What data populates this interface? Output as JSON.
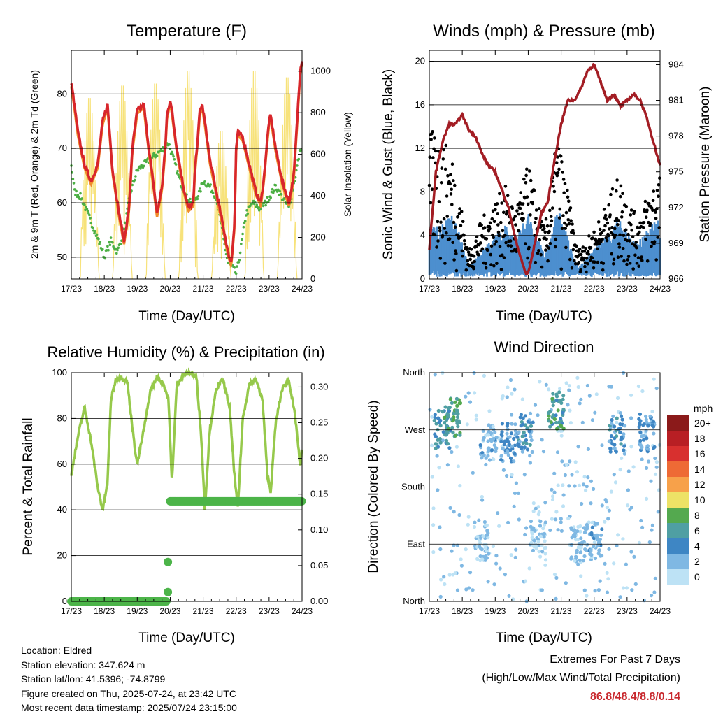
{
  "time_ticks": [
    "17/23",
    "18/23",
    "19/23",
    "20/23",
    "21/23",
    "22/23",
    "23/23",
    "24/23"
  ],
  "panels": {
    "temperature": {
      "title": "Temperature (F)",
      "ylabel_left": "2m & 9m T (Red, Orange) & 2m Td (Green)",
      "ylabel_right": "Solar Insolation (Yellow)",
      "xlabel": "Time (Day/UTC)",
      "left_ticks": [
        50,
        60,
        70,
        80
      ],
      "right_ticks": [
        0,
        200,
        400,
        600,
        800,
        1000
      ]
    },
    "winds": {
      "title": "Winds (mph) & Pressure (mb)",
      "ylabel_left": "Sonic Wind & Gust (Blue, Black)",
      "ylabel_right": "Station Pressure (Maroon)",
      "xlabel": "Time (Day/UTC)",
      "left_ticks": [
        0,
        4,
        8,
        12,
        16,
        20
      ],
      "right_ticks": [
        966,
        969,
        972,
        975,
        978,
        981,
        984
      ]
    },
    "humidity": {
      "title": "Relative Humidity (%) & Precipitation (in)",
      "ylabel_left": "Percent & Total Rainfall",
      "xlabel": "Time (Day/UTC)",
      "left_ticks": [
        0,
        20,
        40,
        60,
        80,
        100
      ],
      "right_ticks": [
        "0.00",
        "0.05",
        "0.10",
        "0.15",
        "0.20",
        "0.25",
        "0.30"
      ]
    },
    "direction": {
      "title": "Wind Direction",
      "ylabel_left": "Direction (Colored By Speed)",
      "xlabel": "Time (Day/UTC)",
      "direction_labels": [
        "North",
        "East",
        "South",
        "West",
        "North"
      ],
      "legend_title": "mph",
      "legend_labels": [
        "20+",
        "18",
        "16",
        "14",
        "12",
        "10",
        "8",
        "6",
        "4",
        "2",
        "0"
      ],
      "legend_colors": [
        "#8b1a1a",
        "#b81f24",
        "#d8302f",
        "#ee6a35",
        "#f7a14a",
        "#ede266",
        "#54a94f",
        "#4f9fa3",
        "#3e86c4",
        "#7fb8e3",
        "#bde2f5"
      ]
    }
  },
  "info": {
    "location": "Location: Eldred",
    "elevation": "Station elevation: 347.624 m",
    "latlon": "Station lat/lon: 41.5396; -74.8799",
    "created": "Figure created on Thu, 2025-07-24, at 23:42 UTC",
    "recent": "Most recent data timestamp: 2025/07/24 23:15:00"
  },
  "extremes": {
    "title": "Extremes For Past 7 Days",
    "subtitle": "(High/Low/Max Wind/Total Precipitation)",
    "values": "86.8/48.4/8.8/0.14"
  },
  "colors": {
    "temp_2m": "#d8262b",
    "temp_9m": "#f08c2c",
    "dewpoint": "#4caf44",
    "solar": "#f7e27a",
    "wind": "#4d8fcf",
    "gust": "#000000",
    "pressure": "#a31d24",
    "rh": "#96c94b",
    "precip": "#4cb449"
  },
  "chart_data": [
    {
      "type": "line",
      "panel": "temperature",
      "x_unit": "days since 17/23 UTC",
      "xlim": [
        0,
        7
      ],
      "ylim": [
        46,
        88
      ],
      "ylim_right": [
        0,
        1100
      ],
      "series": [
        {
          "axis": "left",
          "key": "temp_2m",
          "x": [
            0,
            0.05,
            0.2,
            0.4,
            0.6,
            0.8,
            0.95,
            1.1,
            1.25,
            1.45,
            1.6,
            1.75,
            1.85,
            2.0,
            2.2,
            2.35,
            2.5,
            2.6,
            2.75,
            2.85,
            2.9,
            2.97,
            3.0,
            3.05,
            3.2,
            3.4,
            3.55,
            3.7,
            3.75,
            3.85,
            3.9,
            3.97,
            4.05,
            4.2,
            4.4,
            4.6,
            4.75,
            4.85,
            4.95,
            5.0,
            5.05,
            5.2,
            5.4,
            5.6,
            5.75,
            5.85,
            5.95,
            6.0,
            6.05,
            6.2,
            6.4,
            6.6,
            6.75,
            6.85,
            6.95,
            7.0
          ],
          "y": [
            82,
            80,
            73,
            67,
            64,
            67,
            75,
            78,
            66,
            58,
            53,
            59,
            70,
            77,
            78,
            70,
            63,
            58,
            63,
            70,
            76,
            78,
            79,
            77,
            70,
            63,
            59,
            60,
            66,
            73,
            77,
            78,
            75,
            68,
            62,
            56,
            51,
            49,
            56,
            70,
            73,
            72,
            67,
            62,
            60,
            65,
            72,
            75,
            76,
            70,
            64,
            60,
            65,
            75,
            85,
            86
          ]
        },
        {
          "axis": "left",
          "key": "dewpoint",
          "x": [
            0,
            0.1,
            0.3,
            0.5,
            0.7,
            0.9,
            1.0,
            1.2,
            1.4,
            1.6,
            1.8,
            2.0,
            2.2,
            2.4,
            2.6,
            2.8,
            2.95,
            3.0,
            3.1,
            3.3,
            3.5,
            3.7,
            3.9,
            4.0,
            4.2,
            4.4,
            4.6,
            4.75,
            4.9,
            5.0,
            5.1,
            5.3,
            5.5,
            5.7,
            5.9,
            6.0,
            6.2,
            6.4,
            6.6,
            6.8,
            6.95,
            7.0
          ],
          "y": [
            67,
            62,
            61,
            58,
            55,
            52,
            50,
            53,
            51,
            55,
            62,
            66,
            67,
            68,
            69,
            70,
            71,
            70,
            68,
            64,
            61,
            60,
            62,
            64,
            63,
            61,
            54,
            49,
            48,
            47,
            50,
            58,
            60,
            59,
            60,
            61,
            63,
            61,
            59,
            65,
            70,
            69
          ]
        },
        {
          "axis": "right",
          "key": "solar",
          "peaks": [
            {
              "x": 0.55,
              "v": 880
            },
            {
              "x": 1.55,
              "v": 940
            },
            {
              "x": 2.55,
              "v": 950
            },
            {
              "x": 3.55,
              "v": 1010
            },
            {
              "x": 4.55,
              "v": 720
            },
            {
              "x": 5.55,
              "v": 1010
            },
            {
              "x": 6.55,
              "v": 980
            }
          ]
        }
      ]
    },
    {
      "type": "scatter",
      "panel": "winds",
      "x_unit": "days since 17/23 UTC",
      "xlim": [
        0,
        7
      ],
      "ylim": [
        0,
        21
      ],
      "ylim_right": [
        966,
        985.2
      ],
      "series": [
        {
          "axis": "right",
          "key": "pressure",
          "x": [
            0,
            0.2,
            0.4,
            0.6,
            0.8,
            1.0,
            1.2,
            1.4,
            1.6,
            1.8,
            2.0,
            2.2,
            2.4,
            2.6,
            2.8,
            2.95,
            3.05,
            3.2,
            3.4,
            3.6,
            3.8,
            4.0,
            4.2,
            4.4,
            4.6,
            4.8,
            5.0,
            5.2,
            5.4,
            5.6,
            5.8,
            6.0,
            6.2,
            6.4,
            6.6,
            6.8,
            6.95,
            7.0
          ],
          "y": [
            968.5,
            975.0,
            977.5,
            979.0,
            979.0,
            979.8,
            978.5,
            978.0,
            976.5,
            975.5,
            975.0,
            973.5,
            972.0,
            969.5,
            967.5,
            966.3,
            967.0,
            969.0,
            971.5,
            972.5,
            976.0,
            979.0,
            981.0,
            981.0,
            982.0,
            983.5,
            984.0,
            982.5,
            981.0,
            981.5,
            980.5,
            981.0,
            981.5,
            981.0,
            979.5,
            977.5,
            976.0,
            975.5
          ]
        },
        {
          "axis": "left",
          "key": "wind",
          "envelope": [
            {
              "x": 0.25,
              "v": 4.5
            },
            {
              "x": 0.75,
              "v": 5.5
            },
            {
              "x": 1.2,
              "v": 1.0
            },
            {
              "x": 1.6,
              "v": 2.5
            },
            {
              "x": 2.3,
              "v": 4.5
            },
            {
              "x": 2.6,
              "v": 3.5
            },
            {
              "x": 3.0,
              "v": 5.5
            },
            {
              "x": 3.5,
              "v": 2.0
            },
            {
              "x": 3.9,
              "v": 6.0
            },
            {
              "x": 4.5,
              "v": 1.0
            },
            {
              "x": 5.0,
              "v": 2.5
            },
            {
              "x": 5.75,
              "v": 5.0
            },
            {
              "x": 6.3,
              "v": 3.0
            },
            {
              "x": 6.85,
              "v": 5.0
            }
          ]
        },
        {
          "axis": "left",
          "key": "gust",
          "envelope": [
            {
              "x": 0.2,
              "v": 13
            },
            {
              "x": 0.7,
              "v": 11
            },
            {
              "x": 1.2,
              "v": 2
            },
            {
              "x": 1.6,
              "v": 5
            },
            {
              "x": 2.3,
              "v": 8
            },
            {
              "x": 2.6,
              "v": 6
            },
            {
              "x": 3.0,
              "v": 10
            },
            {
              "x": 3.5,
              "v": 4
            },
            {
              "x": 3.9,
              "v": 13
            },
            {
              "x": 4.5,
              "v": 2
            },
            {
              "x": 5.0,
              "v": 4
            },
            {
              "x": 5.75,
              "v": 9
            },
            {
              "x": 6.3,
              "v": 5
            },
            {
              "x": 6.85,
              "v": 9
            }
          ]
        }
      ]
    },
    {
      "type": "line",
      "panel": "humidity",
      "x_unit": "days since 17/23 UTC",
      "xlim": [
        0,
        7
      ],
      "ylim": [
        0,
        100
      ],
      "ylim_right": [
        0,
        0.32
      ],
      "series": [
        {
          "axis": "left",
          "key": "rh",
          "x": [
            0,
            0.05,
            0.2,
            0.4,
            0.6,
            0.8,
            0.95,
            1.1,
            1.2,
            1.35,
            1.5,
            1.7,
            1.9,
            2.0,
            2.2,
            2.4,
            2.6,
            2.8,
            2.95,
            3.05,
            3.2,
            3.4,
            3.6,
            3.8,
            3.95,
            4.05,
            4.2,
            4.4,
            4.6,
            4.8,
            4.95,
            5.05,
            5.2,
            5.4,
            5.6,
            5.8,
            5.95,
            6.05,
            6.2,
            6.4,
            6.6,
            6.8,
            6.95,
            7.0
          ],
          "y": [
            55,
            60,
            72,
            85,
            70,
            50,
            40,
            52,
            88,
            97,
            98,
            96,
            70,
            60,
            75,
            92,
            98,
            95,
            88,
            52,
            95,
            99,
            100,
            98,
            70,
            40,
            75,
            93,
            97,
            85,
            55,
            40,
            80,
            95,
            97,
            88,
            55,
            48,
            78,
            93,
            97,
            80,
            58,
            68
          ]
        },
        {
          "axis": "right",
          "key": "precip",
          "x": [
            0,
            0.5,
            1.0,
            1.5,
            2.0,
            2.5,
            2.9,
            2.92,
            2.94,
            2.96,
            3.5,
            4.0,
            4.5,
            5.0,
            5.5,
            6.0,
            6.5,
            7.0
          ],
          "y": [
            0,
            0,
            0,
            0,
            0,
            0,
            0,
            0.013,
            0.055,
            0.14,
            0.14,
            0.14,
            0.14,
            0.14,
            0.14,
            0.14,
            0.14,
            0.14
          ]
        }
      ]
    },
    {
      "type": "scatter",
      "panel": "direction",
      "x_unit": "days since 17/23 UTC",
      "xlim": [
        0,
        7
      ],
      "ylim": [
        0,
        360
      ],
      "series": [
        {
          "key": "direction",
          "clusters": [
            {
              "x": 0.4,
              "deg": 270,
              "speed": 5
            },
            {
              "x": 0.7,
              "deg": 290,
              "speed": 7
            },
            {
              "x": 1.8,
              "deg": 250,
              "speed": 2
            },
            {
              "x": 2.4,
              "deg": 250,
              "speed": 3
            },
            {
              "x": 2.9,
              "deg": 265,
              "speed": 4
            },
            {
              "x": 3.85,
              "deg": 300,
              "speed": 6
            },
            {
              "x": 4.5,
              "deg": 90,
              "speed": 1
            },
            {
              "x": 5.0,
              "deg": 95,
              "speed": 2
            },
            {
              "x": 5.7,
              "deg": 265,
              "speed": 4
            },
            {
              "x": 6.6,
              "deg": 265,
              "speed": 3
            },
            {
              "x": 1.6,
              "deg": 95,
              "speed": 1
            },
            {
              "x": 3.3,
              "deg": 100,
              "speed": 1
            }
          ]
        }
      ]
    }
  ]
}
